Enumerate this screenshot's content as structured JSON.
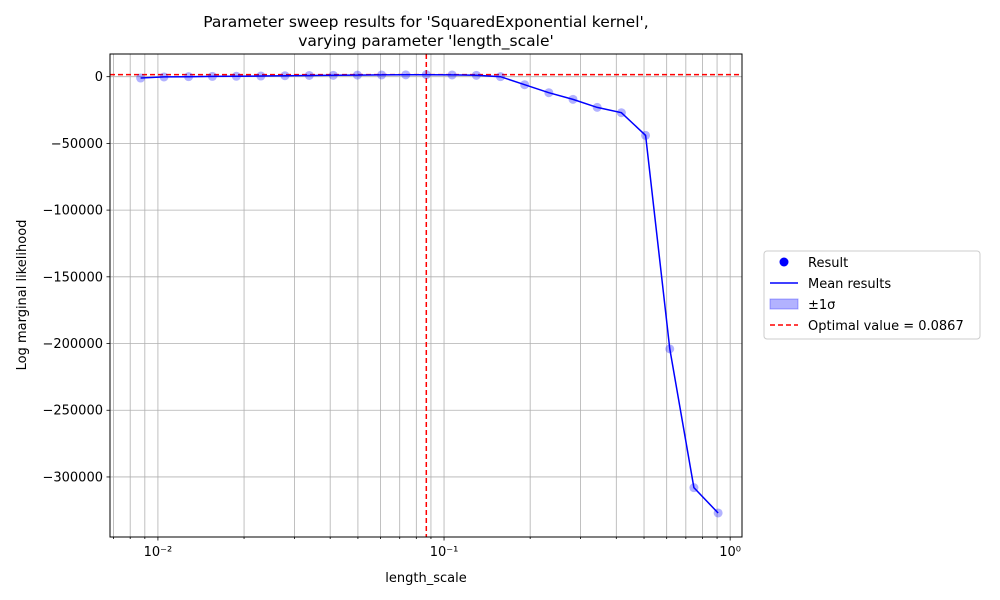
{
  "chart_data": {
    "type": "scatter",
    "title_line1": "Parameter sweep results for 'SquaredExponential kernel',",
    "title_line2": "varying parameter 'length_scale'",
    "xlabel": "length_scale",
    "ylabel": "Log marginal likelihood",
    "xscale": "log",
    "xlim": [
      0.0068,
      1.1
    ],
    "ylim": [
      -345000,
      17000
    ],
    "grid": true,
    "x_tick_labels": [
      "10⁻²",
      "10⁻¹",
      "10⁰"
    ],
    "y_ticks": [
      0,
      -50000,
      -100000,
      -150000,
      -200000,
      -250000,
      -300000
    ],
    "y_tick_labels": [
      "0",
      "−50000",
      "−100000",
      "−150000",
      "−200000",
      "−250000",
      "−300000"
    ],
    "x": [
      0.0087,
      0.0105,
      0.0128,
      0.0155,
      0.0188,
      0.0229,
      0.0278,
      0.0338,
      0.041,
      0.0498,
      0.0605,
      0.0735,
      0.0867,
      0.1067,
      0.1297,
      0.1575,
      0.1913,
      0.2324,
      0.2823,
      0.343,
      0.4167,
      0.5062,
      0.615,
      0.7471,
      0.9076
    ],
    "result": [
      -1000,
      -200,
      0,
      200,
      300,
      500,
      700,
      900,
      1000,
      1200,
      1300,
      1400,
      1500,
      1300,
      1000,
      0,
      -6000,
      -12000,
      -17000,
      -23000,
      -27000,
      -44000,
      -204000,
      -308000,
      -327000
    ],
    "mean": [
      -1000,
      -200,
      0,
      200,
      300,
      500,
      700,
      900,
      1000,
      1200,
      1300,
      1400,
      1500,
      1300,
      1000,
      0,
      -6000,
      -12000,
      -17000,
      -23000,
      -27000,
      -44000,
      -204000,
      -308000,
      -327000
    ],
    "optimal_x": 0.0867,
    "optimal_y": 1500,
    "legend_position": "center-right",
    "legend": {
      "result": "Result",
      "mean": "Mean results",
      "sigma": "±1σ",
      "optimal": "Optimal value = 0.0867"
    },
    "colors": {
      "points": "#0000ff",
      "line": "#0000ff",
      "optimal": "#ff0000",
      "grid": "#b0b0b0"
    }
  }
}
